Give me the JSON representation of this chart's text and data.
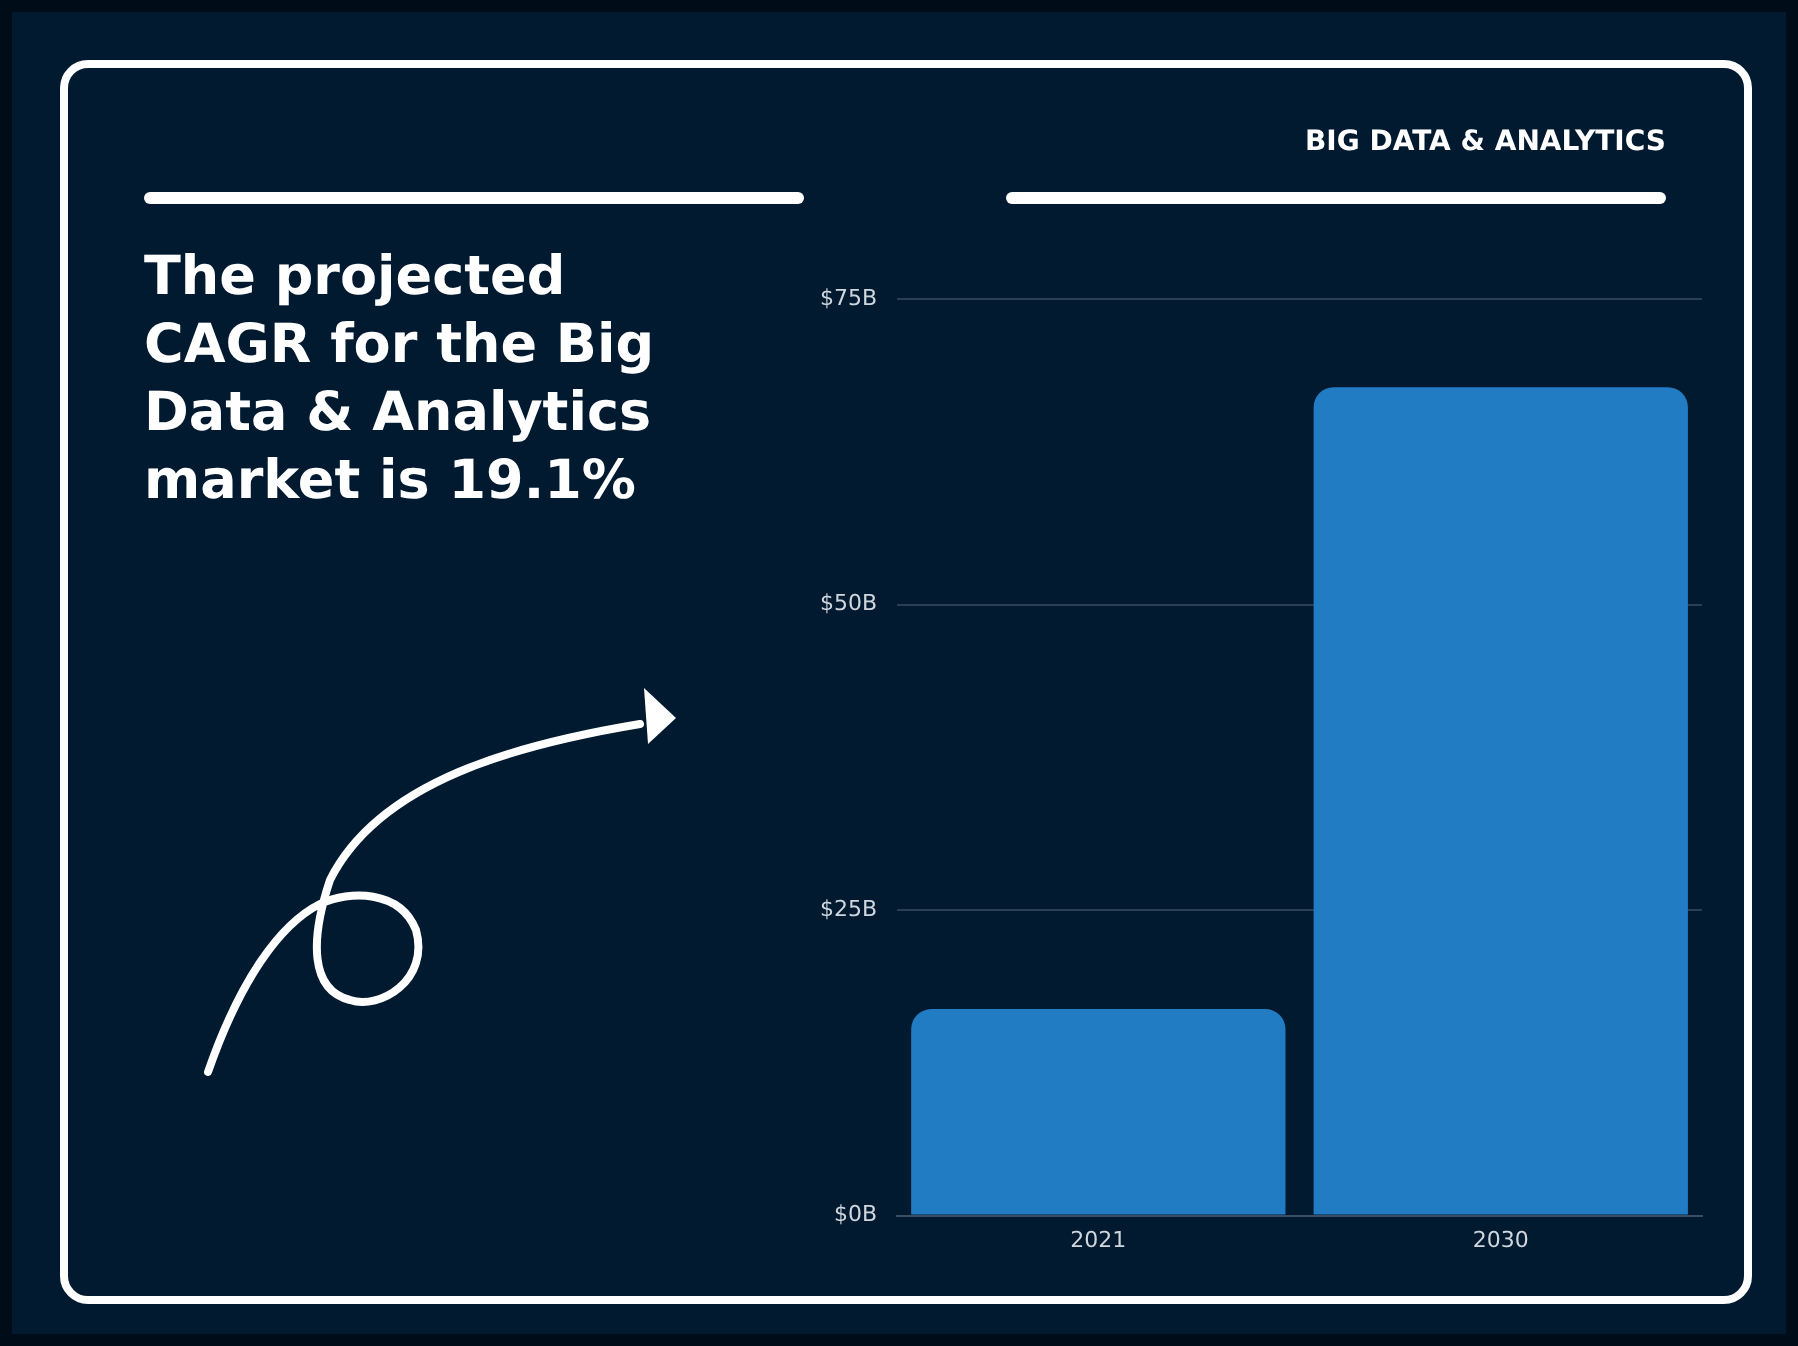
{
  "chart_data": {
    "type": "bar",
    "title": "BIG DATA & ANALYTICS",
    "subtitle": "The projected CAGR for the Big Data & Analytics market is 19.1%",
    "categories": [
      "2021",
      "2030"
    ],
    "values": [
      16.9,
      67.8
    ],
    "color": "#217cc3",
    "ylim": [
      0,
      75
    ],
    "yticks": [
      {
        "value": 0,
        "label": "$0B"
      },
      {
        "value": 25,
        "label": "$25B"
      },
      {
        "value": 50,
        "label": "$50B"
      },
      {
        "value": 75,
        "label": "$75B"
      }
    ],
    "grid": "y",
    "legend": false
  }
}
